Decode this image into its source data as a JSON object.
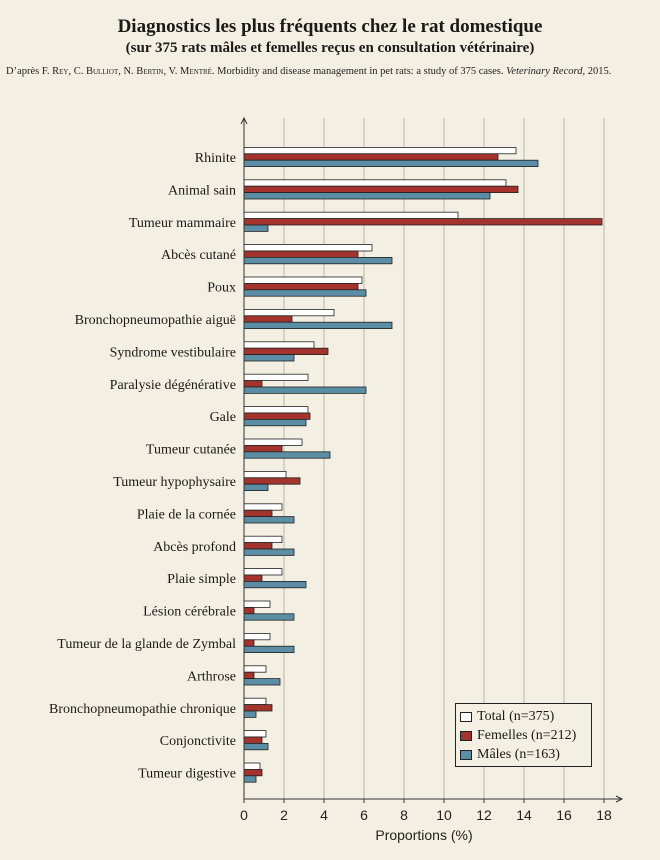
{
  "title": "Diagnostics les plus fréquents chez le rat domestique",
  "subtitle": "(sur 375 rats mâles et femelles reçus en consultation vétérinaire)",
  "source": {
    "prefix": "D’après ",
    "authors": "F. Rey, C. Bulliot, N. Bertin, V. Mentré",
    "text": ". Morbidity and disease management in pet rats: a study of 375 cases. ",
    "journal": "Veterinary Record",
    "year": ", 2015."
  },
  "colors": {
    "total": "#ffffff",
    "femelles": "#a3332c",
    "males": "#5b8ea5",
    "background": "#f3efe2",
    "grid": "#b9b5a9",
    "axis": "#333333"
  },
  "chart_data": {
    "type": "bar",
    "orientation": "horizontal",
    "xlabel": "Proportions (%)",
    "xlim": [
      0,
      18
    ],
    "xticks": [
      0,
      2,
      4,
      6,
      8,
      10,
      12,
      14,
      16,
      18
    ],
    "grid": "vertical",
    "legend_position": "bottom-right",
    "categories": [
      "Rhinite",
      "Animal sain",
      "Tumeur mammaire",
      "Abcès cutané",
      "Poux",
      "Bronchopneumopathie aiguë",
      "Syndrome vestibulaire",
      "Paralysie dégénérative",
      "Gale",
      "Tumeur cutanée",
      "Tumeur hypophysaire",
      "Plaie de la cornée",
      "Abcès profond",
      "Plaie simple",
      "Lésion cérébrale",
      "Tumeur de la glande de Zymbal",
      "Arthrose",
      "Bronchopneumopathie chronique",
      "Conjonctivite",
      "Tumeur digestive"
    ],
    "series": [
      {
        "name": "Total (n=375)",
        "key": "total",
        "values": [
          13.6,
          13.1,
          10.7,
          6.4,
          5.9,
          4.5,
          3.5,
          3.2,
          3.2,
          2.9,
          2.1,
          1.9,
          1.9,
          1.9,
          1.3,
          1.3,
          1.1,
          1.1,
          1.1,
          0.8
        ]
      },
      {
        "name": "Femelles (n=212)",
        "key": "femelles",
        "values": [
          12.7,
          13.7,
          17.9,
          5.7,
          5.7,
          2.4,
          4.2,
          0.9,
          3.3,
          1.9,
          2.8,
          1.4,
          1.4,
          0.9,
          0.5,
          0.5,
          0.5,
          1.4,
          0.9,
          0.9
        ]
      },
      {
        "name": "Mâles (n=163)",
        "key": "males",
        "values": [
          14.7,
          12.3,
          1.2,
          7.4,
          6.1,
          7.4,
          2.5,
          6.1,
          3.1,
          4.3,
          1.2,
          2.5,
          2.5,
          3.1,
          2.5,
          2.5,
          1.8,
          0.6,
          1.2,
          0.6
        ]
      }
    ]
  }
}
